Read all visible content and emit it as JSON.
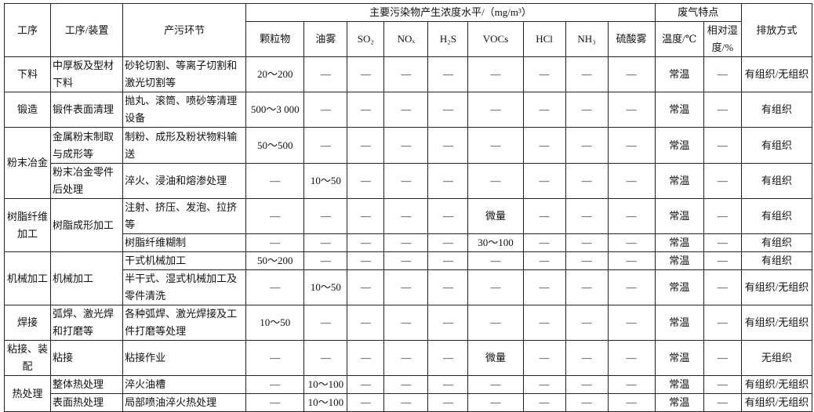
{
  "header": {
    "process": "工序",
    "device": "工序/装置",
    "step": "产污环节",
    "concentration_group": "主要污染物产生浓度水平/（mg/m³）",
    "pollutants": [
      "颗粒物",
      "油雾",
      "SO₂",
      "NOₓ",
      "H₂S",
      "VOCs",
      "HCl",
      "NH₃",
      "硫酸雾"
    ],
    "gas_group": "废气特点",
    "temperature": "温度/℃",
    "humidity": "相对湿度/%",
    "discharge": "排放方式"
  },
  "rows": [
    {
      "process": "下料",
      "device": "中厚板及型材下料",
      "step": "砂轮切割、等离子切割和激光切割等",
      "values": [
        "20～200",
        "—",
        "—",
        "—",
        "—",
        "—",
        "—",
        "—",
        "—"
      ],
      "temperature": "常温",
      "humidity": "—",
      "discharge": "有组织/无组织"
    },
    {
      "process": "锻造",
      "device": "锻件表面清理",
      "step": "抛丸、滚筒、喷砂等清理设备",
      "values": [
        "500～3 000",
        "—",
        "—",
        "—",
        "—",
        "—",
        "—",
        "—",
        "—"
      ],
      "temperature": "常温",
      "humidity": "—",
      "discharge": "有组织"
    },
    {
      "process": "粉末冶金",
      "device": "金属粉末制取与成形等",
      "step": "制粉、成形及粉状物料输送",
      "values": [
        "50～500",
        "—",
        "—",
        "—",
        "—",
        "—",
        "—",
        "—",
        "—"
      ],
      "temperature": "常温",
      "humidity": "—",
      "discharge": "有组织"
    },
    {
      "device": "粉末冶金零件后处理",
      "step": "淬火、浸油和熔渗处理",
      "values": [
        "—",
        "10～50",
        "—",
        "—",
        "—",
        "—",
        "—",
        "—",
        "—"
      ],
      "temperature": "常温",
      "humidity": "—",
      "discharge": "有组织"
    },
    {
      "process": "树脂纤维加工",
      "device": "树脂成形加工",
      "step": "注射、挤压、发泡、拉挤等",
      "values": [
        "—",
        "—",
        "—",
        "—",
        "—",
        "微量",
        "—",
        "—",
        "—"
      ],
      "temperature": "常温",
      "humidity": "—",
      "discharge": "有组织"
    },
    {
      "step": "树脂纤维糊制",
      "values": [
        "—",
        "—",
        "—",
        "—",
        "—",
        "30～100",
        "—",
        "—",
        "—"
      ],
      "temperature": "常温",
      "humidity": "—",
      "discharge": "有组织"
    },
    {
      "process": "机械加工",
      "device": "机械加工",
      "step": "干式机械加工",
      "values": [
        "50～200",
        "—",
        "—",
        "—",
        "—",
        "—",
        "—",
        "—",
        "—"
      ],
      "temperature": "常温",
      "humidity": "—",
      "discharge": "有组织"
    },
    {
      "step": "半干式、湿式机械加工及零件清洗",
      "values": [
        "—",
        "10～50",
        "—",
        "—",
        "—",
        "—",
        "—",
        "—",
        "—"
      ],
      "temperature": "常温",
      "humidity": "—",
      "discharge": "有组织/无组织"
    },
    {
      "process": "焊接",
      "device": "弧焊、激光焊和打磨等",
      "step": "各种弧焊、激光焊接及工件打磨等处理",
      "values": [
        "10～50",
        "—",
        "—",
        "—",
        "—",
        "—",
        "—",
        "—",
        "—"
      ],
      "temperature": "常温",
      "humidity": "—",
      "discharge": "有组织/无组织"
    },
    {
      "process": "粘接、装配",
      "device": "粘接",
      "step": "粘接作业",
      "values": [
        "—",
        "—",
        "—",
        "—",
        "—",
        "微量",
        "—",
        "—",
        "—"
      ],
      "temperature": "常温",
      "humidity": "—",
      "discharge": "无组织"
    },
    {
      "process": "热处理",
      "device": "整体热处理",
      "step": "淬火油槽",
      "values": [
        "—",
        "10～100",
        "—",
        "—",
        "—",
        "—",
        "—",
        "—",
        "—"
      ],
      "temperature": "常温",
      "humidity": "—",
      "discharge": "有组织/无组织"
    },
    {
      "device": "表面热处理",
      "step": "局部喷油淬火热处理",
      "values": [
        "—",
        "10～100",
        "—",
        "—",
        "—",
        "—",
        "—",
        "—",
        "—"
      ],
      "temperature": "常温",
      "humidity": "—",
      "discharge": "有组织/无组织"
    }
  ]
}
